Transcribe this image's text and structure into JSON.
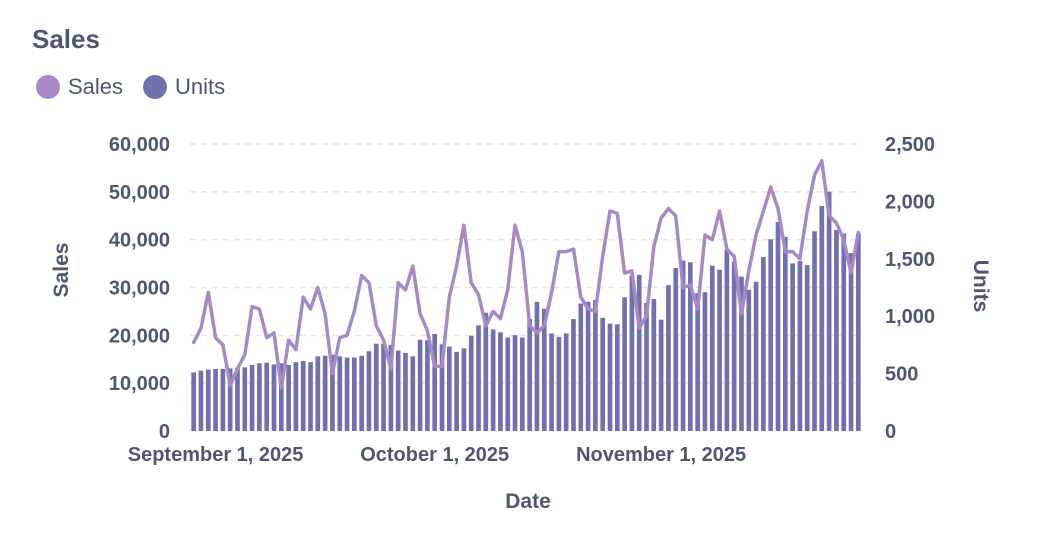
{
  "colors": {
    "sales": "#a989c5",
    "units": "#7172ad",
    "grid": "#e3e5ea",
    "text": "#4c5773"
  },
  "chart_data": {
    "type": "bar",
    "title": "Sales",
    "legend": {
      "placement": "top-left",
      "items": [
        "Sales",
        "Units"
      ]
    },
    "xlabel": "Date",
    "ylabel_left": "Sales",
    "ylabel_right": "Units",
    "grid": true,
    "x_ticks": [
      "September 1, 2025",
      "October 1, 2025",
      "November 1, 2025"
    ],
    "y_left": {
      "min": 0,
      "max": 60000,
      "ticks": [
        "0",
        "10,000",
        "20,000",
        "30,000",
        "40,000",
        "50,000",
        "60,000"
      ]
    },
    "y_right": {
      "min": 0,
      "max": 2500,
      "ticks": [
        "0",
        "500",
        "1,000",
        "1,500",
        "2,000",
        "2,500"
      ]
    },
    "start_date": "2025-08-29",
    "series": [
      {
        "name": "Units",
        "type": "bar",
        "axis": "right",
        "values": [
          510,
          525,
          535,
          540,
          540,
          545,
          550,
          555,
          575,
          590,
          595,
          580,
          590,
          575,
          600,
          610,
          600,
          650,
          655,
          665,
          650,
          640,
          640,
          655,
          695,
          760,
          760,
          750,
          700,
          680,
          650,
          795,
          790,
          845,
          755,
          735,
          690,
          720,
          830,
          920,
          1030,
          885,
          860,
          815,
          835,
          815,
          975,
          1125,
          1065,
          850,
          820,
          850,
          975,
          1110,
          1125,
          1140,
          985,
          935,
          930,
          1165,
          1355,
          1360,
          1115,
          1150,
          970,
          1270,
          1420,
          1485,
          1470,
          1200,
          1210,
          1440,
          1405,
          1580,
          1475,
          1345,
          1230,
          1300,
          1515,
          1670,
          1820,
          1690,
          1460,
          1480,
          1445,
          1740,
          1960,
          2085,
          1750,
          1720,
          1550,
          1720
        ]
      },
      {
        "name": "Sales",
        "type": "line",
        "axis": "left",
        "values": [
          18500,
          21500,
          29000,
          19500,
          18000,
          9500,
          13000,
          16000,
          26000,
          25500,
          19500,
          20500,
          9000,
          19000,
          17000,
          28000,
          25500,
          30000,
          24500,
          12000,
          19500,
          20000,
          25000,
          32500,
          31000,
          22000,
          19000,
          13000,
          31000,
          29500,
          34500,
          24500,
          21000,
          13500,
          13500,
          28000,
          34500,
          43000,
          31000,
          28500,
          22000,
          25000,
          23500,
          29500,
          43000,
          37500,
          22000,
          20500,
          22000,
          29000,
          37500,
          37500,
          38000,
          28000,
          25500,
          25000,
          36500,
          46000,
          45500,
          33000,
          33500,
          21500,
          24000,
          38500,
          44500,
          46500,
          45000,
          30000,
          30500,
          25500,
          41000,
          40000,
          46000,
          38000,
          36500,
          24500,
          33500,
          41000,
          46000,
          51000,
          46500,
          37500,
          37500,
          36000,
          46000,
          53500,
          56500,
          45000,
          43500,
          40000,
          33000,
          41500
        ]
      }
    ]
  }
}
